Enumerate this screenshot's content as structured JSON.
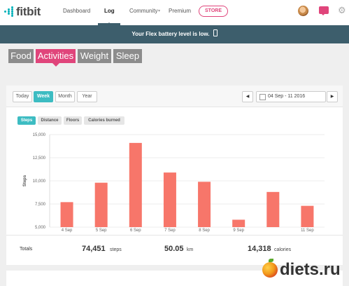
{
  "nav": {
    "logo": "fitbit",
    "items": [
      "Dashboard",
      "Log",
      "Community",
      "Premium"
    ],
    "store": "STORE"
  },
  "banner": {
    "message": "Your Flex battery level is low."
  },
  "category_tabs": [
    "Food",
    "Activities",
    "Weight",
    "Sleep"
  ],
  "period_buttons": [
    "Today",
    "Week",
    "Month",
    "Year"
  ],
  "date_range": "04 Sep - 11 2016",
  "metric_tabs": [
    "Steps",
    "Distance",
    "Floors",
    "Calories burned"
  ],
  "colors": {
    "accent": "#3dbcc2",
    "pink": "#e0457b",
    "bar": "#f7766a",
    "banner": "#3d5e6c"
  },
  "chart_data": {
    "type": "bar",
    "ylabel": "Steps",
    "ylim": [
      5000,
      15000
    ],
    "yticks": [
      "5,000",
      "7,500",
      "10,000",
      "12,500",
      "15,000"
    ],
    "categories": [
      "4 Sep",
      "5 Sep",
      "6 Sep",
      "7 Sep",
      "8 Sep",
      "9 Sep",
      "",
      "11 Sep"
    ],
    "values": [
      7700,
      9800,
      14100,
      10900,
      9900,
      5800,
      8800,
      7300
    ]
  },
  "totals": {
    "label": "Totals",
    "steps": "74,451",
    "steps_unit": "steps",
    "distance": "50.05",
    "distance_unit": "km",
    "calories": "14,318",
    "calories_unit": "calories"
  },
  "watermark": "diets.ru"
}
